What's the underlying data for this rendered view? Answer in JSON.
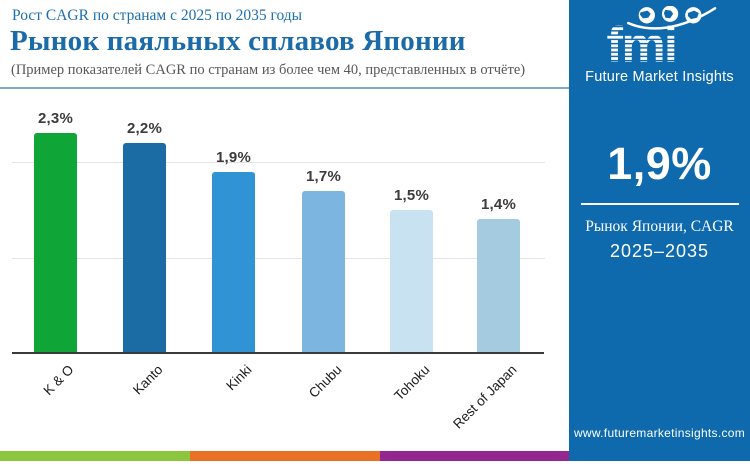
{
  "header": {
    "eyebrow": "Рост CAGR по странам с 2025 по 2035 годы",
    "title": "Рынок паяльных сплавов Японии",
    "subtitle": "(Пример показателей CAGR по странам из более чем 40, представленных в отчёте)"
  },
  "chart_data": {
    "type": "bar",
    "categories": [
      "K & O",
      "Kanto",
      "Kinki",
      "Chubu",
      "Tohoku",
      "Rest of Japan"
    ],
    "values": [
      2.3,
      2.2,
      1.9,
      1.7,
      1.5,
      1.4
    ],
    "value_labels": [
      "2,3%",
      "2,2%",
      "1,9%",
      "1,7%",
      "1,5%",
      "1,4%"
    ],
    "bar_colors": [
      "#0FA637",
      "#1B6CA4",
      "#2F93D4",
      "#7CB5DF",
      "#C9E2F2",
      "#A5CBE1"
    ],
    "title": "Рынок паяльных сплавов Японии",
    "xlabel": "",
    "ylabel": "",
    "ylim": [
      0,
      2.4
    ],
    "gridline_values": [
      1,
      2
    ],
    "grid": "horizontal-only",
    "legend": "none",
    "bar_label_format": "comma-decimal percent"
  },
  "sidebar": {
    "brand": {
      "logo_text": "fmi",
      "logo_caption": "Future Market Insights"
    },
    "stat_value": "1,9%",
    "stat_caption_line1": "Рынок Японии, CAGR",
    "stat_caption_line2": "2025–2035",
    "website": "www.futuremarketinsights.com",
    "background_color": "#0E6AAC"
  },
  "footer_stripe_colors": [
    "#8CC63E",
    "#E97025",
    "#93268F"
  ],
  "accent_colors": {
    "header_text": "#1C6BA9",
    "eyebrow_text": "#1E6FAF",
    "divider": "#7FA8C6"
  }
}
